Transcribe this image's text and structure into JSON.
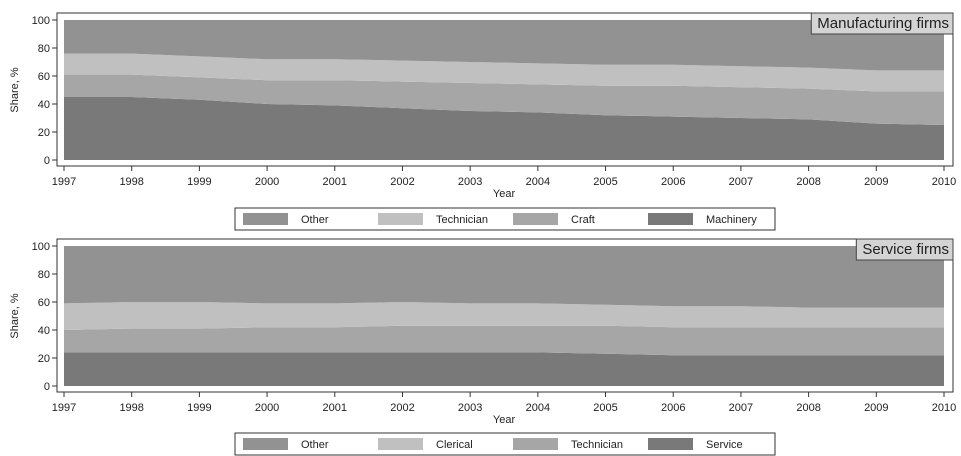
{
  "chart_data": [
    {
      "type": "area",
      "stacked": true,
      "title": "Manufacturing firms",
      "xlabel": "Year",
      "ylabel": "Share, %",
      "x": [
        "1997",
        "1998",
        "1999",
        "2000",
        "2001",
        "2002",
        "2003",
        "2004",
        "2005",
        "2006",
        "2007",
        "2008",
        "2009",
        "2010"
      ],
      "ylim": [
        0,
        100
      ],
      "yticks": [
        "0",
        "20",
        "40",
        "60",
        "80",
        "100"
      ],
      "grid": false,
      "legend_position": "bottom",
      "series": [
        {
          "name": "Machinery",
          "color": "#797979",
          "values": [
            45,
            45,
            43,
            40,
            39,
            37,
            35,
            34,
            32,
            31,
            30,
            29,
            26,
            25
          ]
        },
        {
          "name": "Craft",
          "color": "#a6a6a6",
          "values": [
            16,
            16,
            16,
            17,
            18,
            19,
            20,
            20,
            21,
            22,
            22,
            22,
            23,
            24
          ]
        },
        {
          "name": "Technician",
          "color": "#c0c0c0",
          "values": [
            15,
            15,
            15,
            15,
            15,
            15,
            15,
            15,
            15,
            15,
            15,
            15,
            15,
            15
          ]
        },
        {
          "name": "Other",
          "color": "#929292",
          "values": [
            24,
            24,
            26,
            28,
            28,
            29,
            30,
            31,
            32,
            32,
            33,
            34,
            36,
            36
          ]
        }
      ],
      "legend_order": [
        "Other",
        "Technician",
        "Craft",
        "Machinery"
      ]
    },
    {
      "type": "area",
      "stacked": true,
      "title": "Service firms",
      "xlabel": "Year",
      "ylabel": "Share, %",
      "x": [
        "1997",
        "1998",
        "1999",
        "2000",
        "2001",
        "2002",
        "2003",
        "2004",
        "2005",
        "2006",
        "2007",
        "2008",
        "2009",
        "2010"
      ],
      "ylim": [
        0,
        100
      ],
      "yticks": [
        "0",
        "20",
        "40",
        "60",
        "80",
        "100"
      ],
      "grid": false,
      "legend_position": "bottom",
      "series": [
        {
          "name": "Service",
          "color": "#797979",
          "values": [
            24,
            24,
            24,
            24,
            24,
            24,
            24,
            24,
            23,
            22,
            22,
            22,
            22,
            22
          ]
        },
        {
          "name": "Technician",
          "color": "#a6a6a6",
          "values": [
            16,
            17,
            17,
            18,
            18,
            19,
            19,
            19,
            20,
            20,
            20,
            20,
            20,
            20
          ]
        },
        {
          "name": "Clerical",
          "color": "#c0c0c0",
          "values": [
            19,
            19,
            19,
            17,
            17,
            17,
            16,
            16,
            15,
            15,
            15,
            14,
            14,
            14
          ]
        },
        {
          "name": "Other",
          "color": "#929292",
          "values": [
            41,
            40,
            40,
            41,
            41,
            40,
            41,
            41,
            42,
            43,
            43,
            44,
            44,
            44
          ]
        }
      ],
      "legend_order": [
        "Other",
        "Clerical",
        "Technician",
        "Service"
      ]
    }
  ]
}
